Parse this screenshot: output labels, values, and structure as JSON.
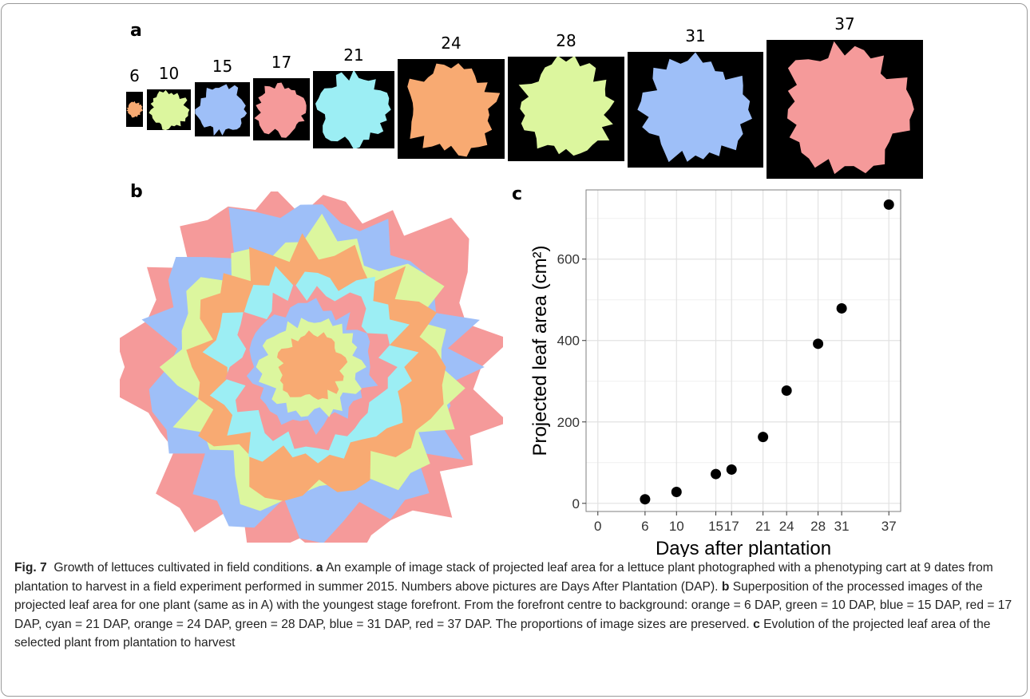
{
  "panels": {
    "a": "a",
    "b": "b",
    "c": "c"
  },
  "tiles": [
    {
      "dap": "6",
      "color": "#F8AA72"
    },
    {
      "dap": "10",
      "color": "#DCF69E"
    },
    {
      "dap": "15",
      "color": "#9EBFF8"
    },
    {
      "dap": "17",
      "color": "#F59A9A"
    },
    {
      "dap": "21",
      "color": "#9CEEF4"
    },
    {
      "dap": "24",
      "color": "#F8AA72"
    },
    {
      "dap": "28",
      "color": "#DCF69E"
    },
    {
      "dap": "31",
      "color": "#9EBFF8"
    },
    {
      "dap": "37",
      "color": "#F59A9A"
    }
  ],
  "superposition_colors": [
    "#F59A9A",
    "#9EBFF8",
    "#DCF69E",
    "#F8AA72",
    "#9CEEF4",
    "#F59A9A",
    "#9EBFF8",
    "#DCF69E",
    "#F8AA72"
  ],
  "chart_data": {
    "type": "scatter",
    "xlabel": "Days after plantation",
    "ylabel": "Projected leaf area (cm²)",
    "x_ticks": [
      0,
      6,
      10,
      15,
      17,
      21,
      24,
      28,
      31,
      37
    ],
    "y_ticks": [
      0,
      200,
      400,
      600
    ],
    "xlim": [
      -1.5,
      38.5
    ],
    "ylim": [
      -20,
      770
    ],
    "grid": true,
    "points": [
      {
        "x": 6,
        "y": 10
      },
      {
        "x": 10,
        "y": 28
      },
      {
        "x": 15,
        "y": 72
      },
      {
        "x": 17,
        "y": 83
      },
      {
        "x": 21,
        "y": 163
      },
      {
        "x": 24,
        "y": 277
      },
      {
        "x": 28,
        "y": 392
      },
      {
        "x": 31,
        "y": 479
      },
      {
        "x": 37,
        "y": 734
      }
    ]
  },
  "caption": {
    "fig_label": "Fig. 7",
    "title": "Growth of lettuces cultivated in field conditions.",
    "a_label": "a",
    "a_text": "An example of image stack of projected leaf area for a lettuce plant photographed with a phenotyping cart at 9 dates from plantation to harvest in a field experiment performed in summer 2015. Numbers above pictures are Days After Plantation (DAP).",
    "b_label": "b",
    "b_text": "Superposition of the processed images of the projected leaf area for one plant (same as in A) with the youngest stage forefront. From the forefront centre to background: orange = 6 DAP, green = 10 DAP, blue = 15 DAP, red = 17 DAP, cyan = 21 DAP, orange = 24 DAP, green = 28 DAP, blue = 31 DAP, red = 37 DAP. The proportions of image sizes are preserved.",
    "c_label": "c",
    "c_text": "Evolution of the projected leaf area of the selected plant from plantation to harvest"
  }
}
